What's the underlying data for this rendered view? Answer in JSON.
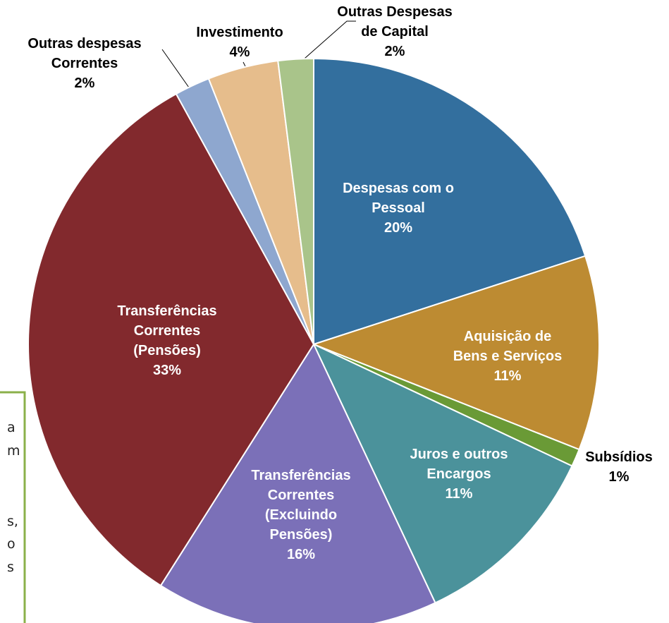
{
  "chart_data": {
    "type": "pie",
    "categories": [
      "Despesas com o Pessoal",
      "Aquisição de Bens e Serviços",
      "Subsídios",
      "Juros e outros Encargos",
      "Transferências Correntes (Excluindo Pensões)",
      "Transferências Correntes (Pensões)",
      "Outras despesas Correntes",
      "Investimento",
      "Outras Despesas de Capital"
    ],
    "values": [
      20,
      11,
      1,
      11,
      16,
      33,
      2,
      4,
      2
    ],
    "value_labels": [
      "20%",
      "11%",
      "1%",
      "11%",
      "16%",
      "33%",
      "2%",
      "4%",
      "2%"
    ],
    "colors": [
      "#336f9e",
      "#bd8b32",
      "#6a9a36",
      "#4b929b",
      "#7b70b8",
      "#82292d",
      "#8ea7cf",
      "#e6bd8c",
      "#a9c48a"
    ]
  },
  "side_box": {
    "lines": [
      "a",
      "m",
      "s,",
      "o",
      "s"
    ]
  }
}
